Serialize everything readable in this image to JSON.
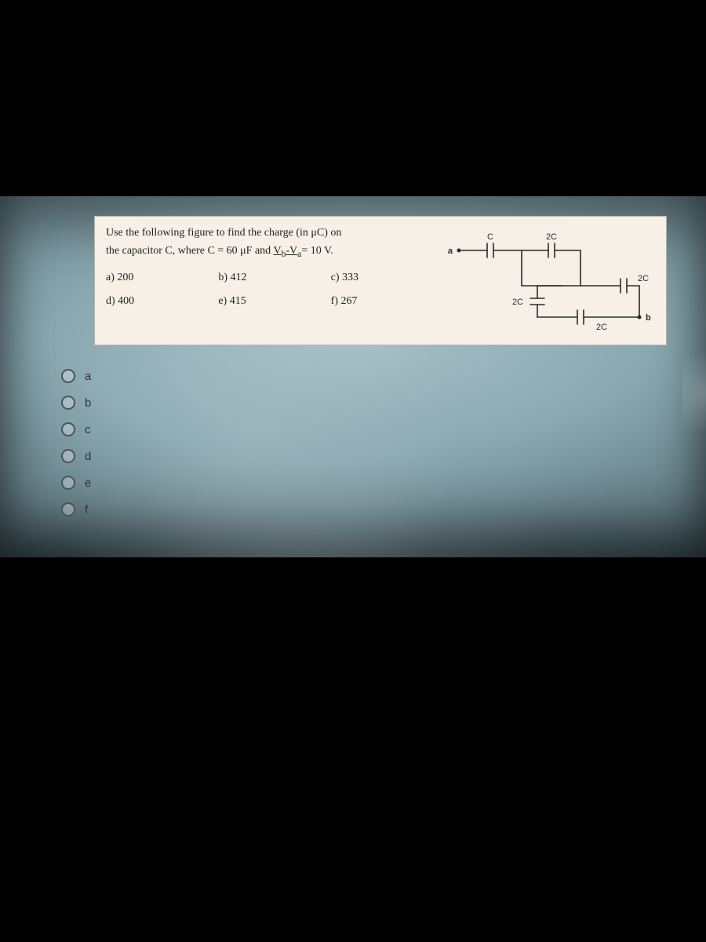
{
  "question": {
    "line1": "Use the following figure to find the charge (in μC) on",
    "line2": "the capacitor C, where C = 60 μF and Vb-Va = 10 V."
  },
  "choices": [
    {
      "label": "a) 200"
    },
    {
      "label": "b) 412"
    },
    {
      "label": "c) 333"
    },
    {
      "label": "d) 400"
    },
    {
      "label": "e) 415"
    },
    {
      "label": "f) 267"
    }
  ],
  "circuit": {
    "node_a": "a",
    "node_b": "b",
    "caps": {
      "top_left": "C",
      "top_right": "2C",
      "mid_left": "2C",
      "mid_right": "2C",
      "bottom": "2C"
    },
    "stroke": "#2a2a2a",
    "stroke_width": 1.6,
    "label_fontsize": 11,
    "label_font": "Arial, sans-serif"
  },
  "answer_options": [
    {
      "key": "a"
    },
    {
      "key": "b"
    },
    {
      "key": "c"
    },
    {
      "key": "d"
    },
    {
      "key": "e"
    },
    {
      "key": "f"
    }
  ],
  "colors": {
    "paper": "#f6f0e6",
    "text": "#222222",
    "band_light": "#a8c0c8",
    "band_dark": "#203038"
  }
}
